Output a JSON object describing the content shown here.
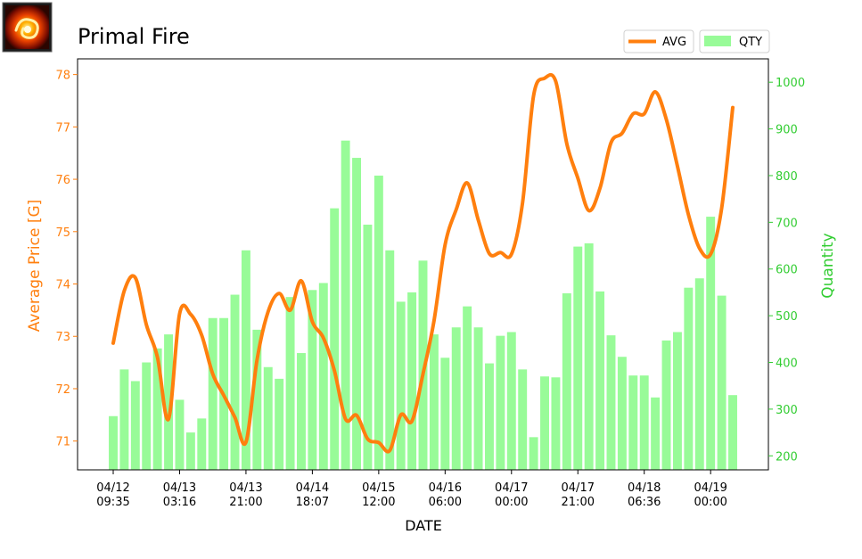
{
  "title": "Primal Fire",
  "icon": "fire-crystal-icon",
  "colors": {
    "avg": "#ff7f0e",
    "qty": "#98fb98",
    "qty_axis": "#32cd32",
    "avg_axis": "#ff7f0e"
  },
  "chart_data": {
    "type": "bar+line",
    "title": "Primal Fire",
    "xlabel": "DATE",
    "ylabel_left": "Average Price [G]",
    "ylabel_right": "Quantity",
    "ylim_left": [
      70.45,
      78.3
    ],
    "ylim_right": [
      170,
      1050
    ],
    "yticks_left": [
      71,
      72,
      73,
      74,
      75,
      76,
      77,
      78
    ],
    "yticks_right": [
      200,
      300,
      400,
      500,
      600,
      700,
      800,
      900,
      1000
    ],
    "x_tick_labels": [
      {
        "index": 0,
        "l1": "04/12",
        "l2": "09:35"
      },
      {
        "index": 6,
        "l1": "04/13",
        "l2": "03:16"
      },
      {
        "index": 12,
        "l1": "04/13",
        "l2": "21:00"
      },
      {
        "index": 18,
        "l1": "04/14",
        "l2": "18:07"
      },
      {
        "index": 24,
        "l1": "04/15",
        "l2": "12:00"
      },
      {
        "index": 30,
        "l1": "04/16",
        "l2": "06:00"
      },
      {
        "index": 36,
        "l1": "04/17",
        "l2": "00:00"
      },
      {
        "index": 42,
        "l1": "04/17",
        "l2": "21:00"
      },
      {
        "index": 48,
        "l1": "04/18",
        "l2": "06:36"
      },
      {
        "index": 54,
        "l1": "04/19",
        "l2": "00:00"
      }
    ],
    "legend_placement": "top-right, above plot",
    "series": [
      {
        "name": "AVG",
        "type": "line",
        "axis": "left",
        "values": [
          72.87,
          73.87,
          74.12,
          73.22,
          72.6,
          71.42,
          73.43,
          73.42,
          73.02,
          72.28,
          71.87,
          71.45,
          70.98,
          72.55,
          73.47,
          73.82,
          73.5,
          74.06,
          73.28,
          72.97,
          72.34,
          71.42,
          71.49,
          71.04,
          70.97,
          70.82,
          71.5,
          71.38,
          72.28,
          73.3,
          74.75,
          75.42,
          75.93,
          75.22,
          74.58,
          74.6,
          74.57,
          75.55,
          77.6,
          77.93,
          77.87,
          76.68,
          76.02,
          75.4,
          75.83,
          76.7,
          76.88,
          77.25,
          77.25,
          77.67,
          77.14,
          76.25,
          75.32,
          74.68,
          74.57,
          75.45,
          77.37
        ]
      },
      {
        "name": "QTY",
        "type": "bar",
        "axis": "right",
        "values": [
          285,
          385,
          360,
          400,
          430,
          460,
          320,
          250,
          280,
          495,
          495,
          545,
          640,
          470,
          390,
          365,
          540,
          420,
          555,
          570,
          730,
          875,
          838,
          695,
          800,
          640,
          530,
          550,
          618,
          460,
          410,
          475,
          520,
          475,
          398,
          457,
          465,
          385,
          240,
          370,
          368,
          548,
          648,
          655,
          552,
          458,
          412,
          372,
          372,
          325,
          447,
          465,
          560,
          580,
          712,
          543,
          330
        ]
      }
    ]
  }
}
